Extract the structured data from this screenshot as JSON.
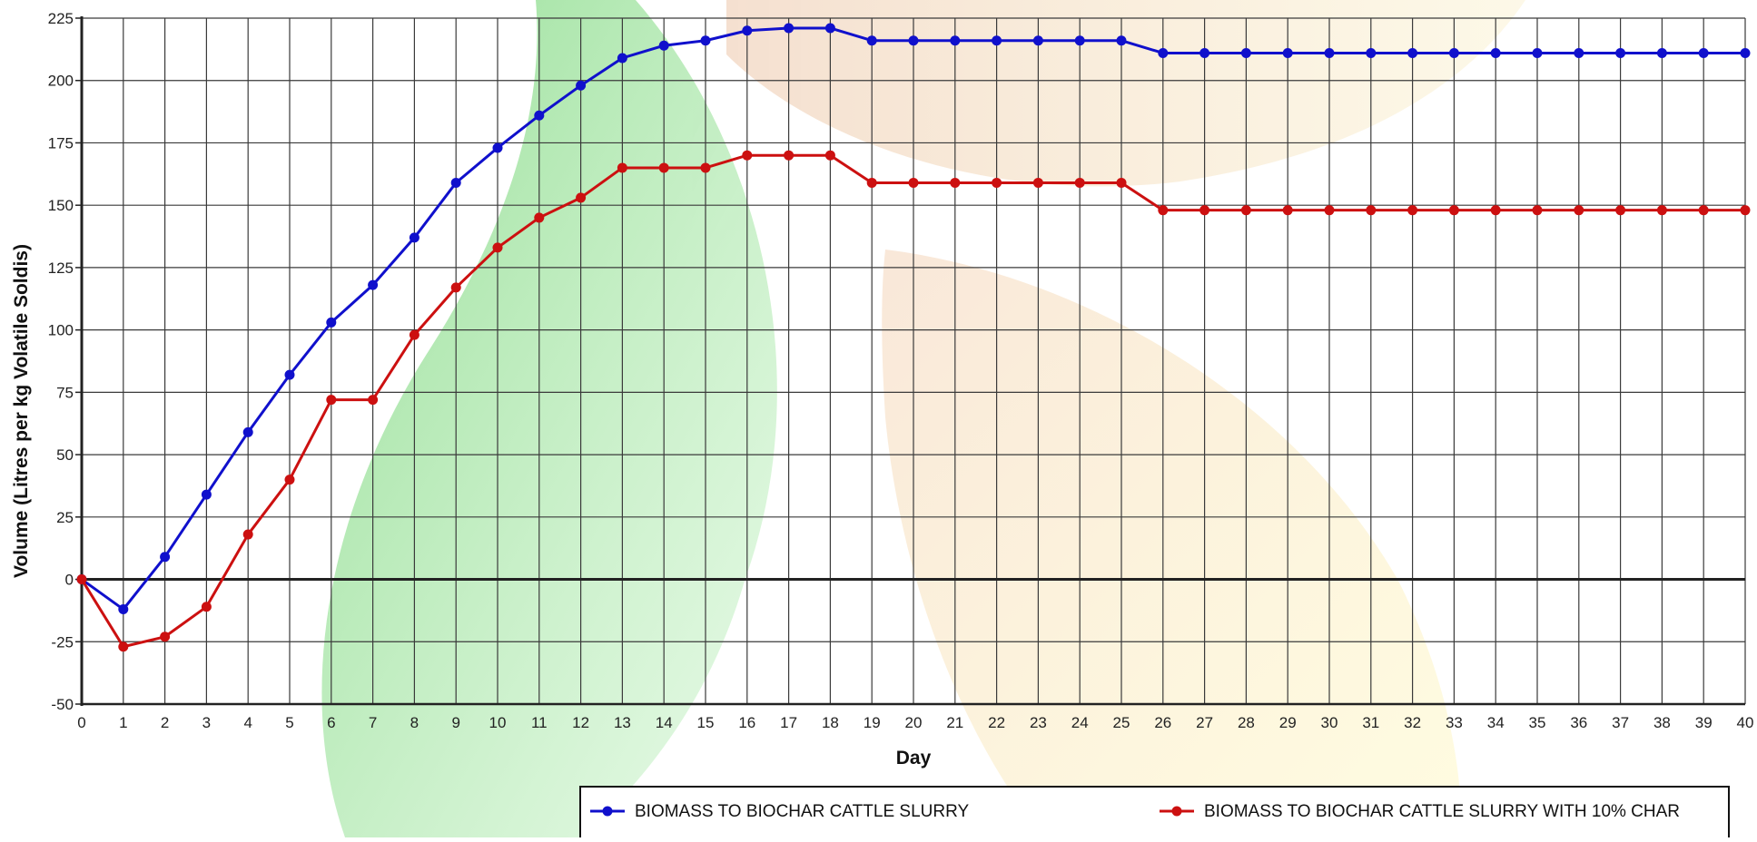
{
  "chart_data": {
    "type": "line",
    "title": "",
    "xlabel": "Day",
    "ylabel": "Volume (Litres per kg Volatile Soldis)",
    "xlim": [
      0,
      40
    ],
    "ylim": [
      -50,
      225
    ],
    "x_ticks": [
      0,
      1,
      2,
      3,
      4,
      5,
      6,
      7,
      8,
      9,
      10,
      11,
      12,
      13,
      14,
      15,
      16,
      17,
      18,
      19,
      20,
      21,
      22,
      23,
      24,
      25,
      26,
      27,
      28,
      29,
      30,
      31,
      32,
      33,
      34,
      35,
      36,
      37,
      38,
      39,
      40
    ],
    "y_ticks": [
      -50,
      -25,
      0,
      25,
      50,
      75,
      100,
      125,
      150,
      175,
      200,
      225
    ],
    "grid": true,
    "legend_position": "bottom",
    "x": [
      0,
      1,
      2,
      3,
      4,
      5,
      6,
      7,
      8,
      9,
      10,
      11,
      12,
      13,
      14,
      15,
      16,
      17,
      18,
      19,
      20,
      21,
      22,
      23,
      24,
      25,
      26,
      27,
      28,
      29,
      30,
      31,
      32,
      33,
      34,
      35,
      36,
      37,
      38,
      39,
      40
    ],
    "series": [
      {
        "name": "BIOMASS TO BIOCHAR CATTLE SLURRY",
        "color": "#1010cc",
        "values": [
          0,
          -12,
          9,
          34,
          59,
          82,
          103,
          118,
          137,
          159,
          173,
          186,
          198,
          209,
          214,
          216,
          220,
          221,
          221,
          216,
          216,
          216,
          216,
          216,
          216,
          216,
          211,
          211,
          211,
          211,
          211,
          211,
          211,
          211,
          211,
          211,
          211,
          211,
          211,
          211,
          211
        ]
      },
      {
        "name": "BIOMASS TO BIOCHAR CATTLE SLURRY WITH 10% CHAR",
        "color": "#cc1010",
        "values": [
          0,
          -27,
          -23,
          -11,
          18,
          40,
          72,
          72,
          98,
          117,
          133,
          145,
          153,
          165,
          165,
          165,
          170,
          170,
          170,
          159,
          159,
          159,
          159,
          159,
          159,
          159,
          148,
          148,
          148,
          148,
          148,
          148,
          148,
          148,
          148,
          148,
          148,
          148,
          148,
          148,
          148
        ]
      }
    ]
  }
}
